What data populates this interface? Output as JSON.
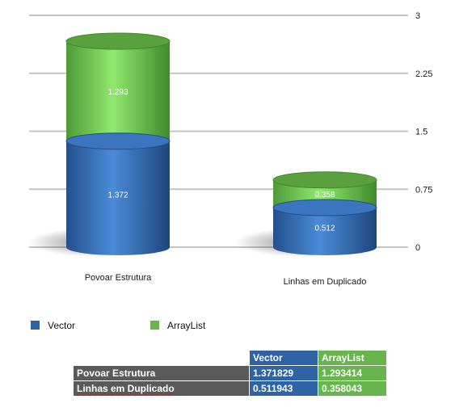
{
  "chart_data": {
    "type": "bar",
    "stacked": true,
    "categories": [
      "Povoar Estrutura",
      "Linhas em Duplicado"
    ],
    "series": [
      {
        "name": "Vector",
        "values": [
          1.372,
          0.512
        ],
        "color": "#3269b0"
      },
      {
        "name": "ArrayList",
        "values": [
          1.293,
          0.358
        ],
        "color": "#6abf4b"
      }
    ],
    "ylim": [
      0,
      3
    ],
    "yticks": [
      "0",
      "0.75",
      "1.5",
      "2.25",
      "3"
    ],
    "grid": true,
    "legend": "bottom-left"
  },
  "legend": [
    {
      "label": "Vector",
      "color": "#2e63a6"
    },
    {
      "label": "ArrayList",
      "color": "#67b54c"
    }
  ],
  "table": {
    "headers": [
      "Vector",
      "ArrayList"
    ],
    "rows": [
      {
        "label": "Povoar Estrutura",
        "values": [
          "1.371829",
          "1.293414"
        ]
      },
      {
        "label": "Linhas em Duplicado",
        "values": [
          "0.511943",
          "0.358043"
        ]
      }
    ]
  }
}
